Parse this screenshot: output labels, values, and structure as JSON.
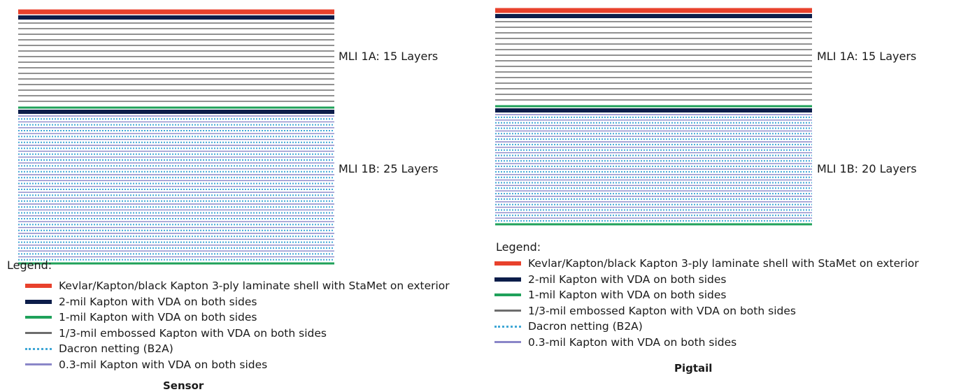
{
  "colors": {
    "shell": "#e8412c",
    "kapton_2mil": "#0c1d4a",
    "kapton_1mil": "#1fa15a",
    "embossed_third_mil": "#6d6d6d",
    "dacron": "#3fa7d6",
    "kapton_03mil": "#8a86c8"
  },
  "legend": {
    "title": "Legend:",
    "items": [
      {
        "key": "shell",
        "style": "solid",
        "label": "Kevlar/Kapton/black Kapton 3-ply laminate shell with StaMet on exterior"
      },
      {
        "key": "kapton_2mil",
        "style": "solid",
        "label": "2-mil Kapton with VDA on both sides"
      },
      {
        "key": "kapton_1mil",
        "style": "solid",
        "label": "1-mil Kapton with VDA on both sides"
      },
      {
        "key": "embossed_third_mil",
        "style": "solid",
        "label": "1/3-mil embossed Kapton with VDA on both sides"
      },
      {
        "key": "dacron",
        "style": "dotted",
        "label": "Dacron netting (B2A)"
      },
      {
        "key": "kapton_03mil",
        "style": "solid",
        "label": "0.3-mil Kapton with VDA on both sides"
      }
    ]
  },
  "panels": [
    {
      "id": "sensor",
      "caption": "Sensor",
      "sections": [
        {
          "label": "MLI 1A: 15 Layers",
          "layers": 15
        },
        {
          "label": "MLI 1B: 25 Layers",
          "layers": 25
        }
      ]
    },
    {
      "id": "pigtail",
      "caption": "Pigtail",
      "sections": [
        {
          "label": "MLI 1A: 15 Layers",
          "layers": 15
        },
        {
          "label": "MLI 1B: 20 Layers",
          "layers": 20
        }
      ]
    }
  ]
}
